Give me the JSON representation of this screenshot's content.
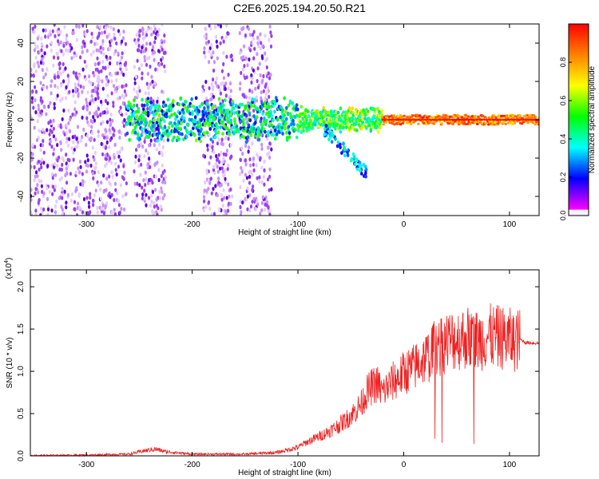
{
  "title": "C2E6.2025.194.20.50.R21",
  "chart_data": [
    {
      "type": "heatmap",
      "xlabel": "Height of straight line (km)",
      "ylabel": "Frequency (Hz)",
      "xlim": [
        -353,
        128
      ],
      "ylim": [
        -50,
        50
      ],
      "xticks": [
        -300,
        -200,
        -100,
        0,
        100
      ],
      "yticks": [
        -40,
        -20,
        0,
        20,
        40
      ],
      "colorbar": {
        "label": "Normalized spectral amplitude",
        "range": [
          0.0,
          1.0
        ],
        "ticks": [
          0.0,
          0.2,
          0.4,
          0.6,
          0.8
        ],
        "colormap": [
          "#ffffff",
          "#ff00ff",
          "#0000ff",
          "#00ffff",
          "#00ff00",
          "#ffff00",
          "#ff8000",
          "#ff0000"
        ]
      },
      "features": {
        "noise_regions_x": [
          [
            -353,
            -262
          ],
          [
            -255,
            -225
          ],
          [
            -190,
            -162
          ],
          [
            -155,
            -125
          ]
        ],
        "band_center_hz": 0,
        "band_strong_from_x": -20,
        "streak_x": [
          -75,
          -35
        ],
        "streak_y": [
          -5,
          -28
        ]
      }
    },
    {
      "type": "line",
      "xlabel": "Height of straight line (km)",
      "ylabel": "SNR (10 * v/v)",
      "y_multiplier": "(x10",
      "y_multiplier_exp": "4",
      "xlim": [
        -353,
        128
      ],
      "ylim": [
        0,
        2.2
      ],
      "xticks": [
        -300,
        -200,
        -100,
        0,
        100
      ],
      "yticks": [
        0.0,
        0.5,
        1.0,
        1.5,
        2.0
      ],
      "line_color": "#ee2222",
      "series": [
        {
          "x": [
            -353,
            -300,
            -260,
            -245,
            -235,
            -225,
            -200,
            -150,
            -120,
            -100,
            -95,
            -85,
            -75,
            -65,
            -55,
            -45,
            -40,
            -35,
            -30,
            -25,
            -20,
            -15,
            -10,
            -5,
            0,
            10,
            20,
            25,
            30,
            35,
            40,
            50,
            60,
            70,
            80,
            90,
            100,
            105,
            110,
            115,
            128
          ],
          "y": [
            0.005,
            0.01,
            0.02,
            0.06,
            0.08,
            0.05,
            0.02,
            0.02,
            0.04,
            0.1,
            0.14,
            0.2,
            0.26,
            0.33,
            0.42,
            0.54,
            0.62,
            0.75,
            0.82,
            0.85,
            0.75,
            0.82,
            0.88,
            0.92,
            0.98,
            1.05,
            1.15,
            1.2,
            1.32,
            1.28,
            1.35,
            1.38,
            1.4,
            1.36,
            1.42,
            1.4,
            1.38,
            1.36,
            1.38,
            1.34,
            1.33
          ]
        }
      ]
    }
  ]
}
